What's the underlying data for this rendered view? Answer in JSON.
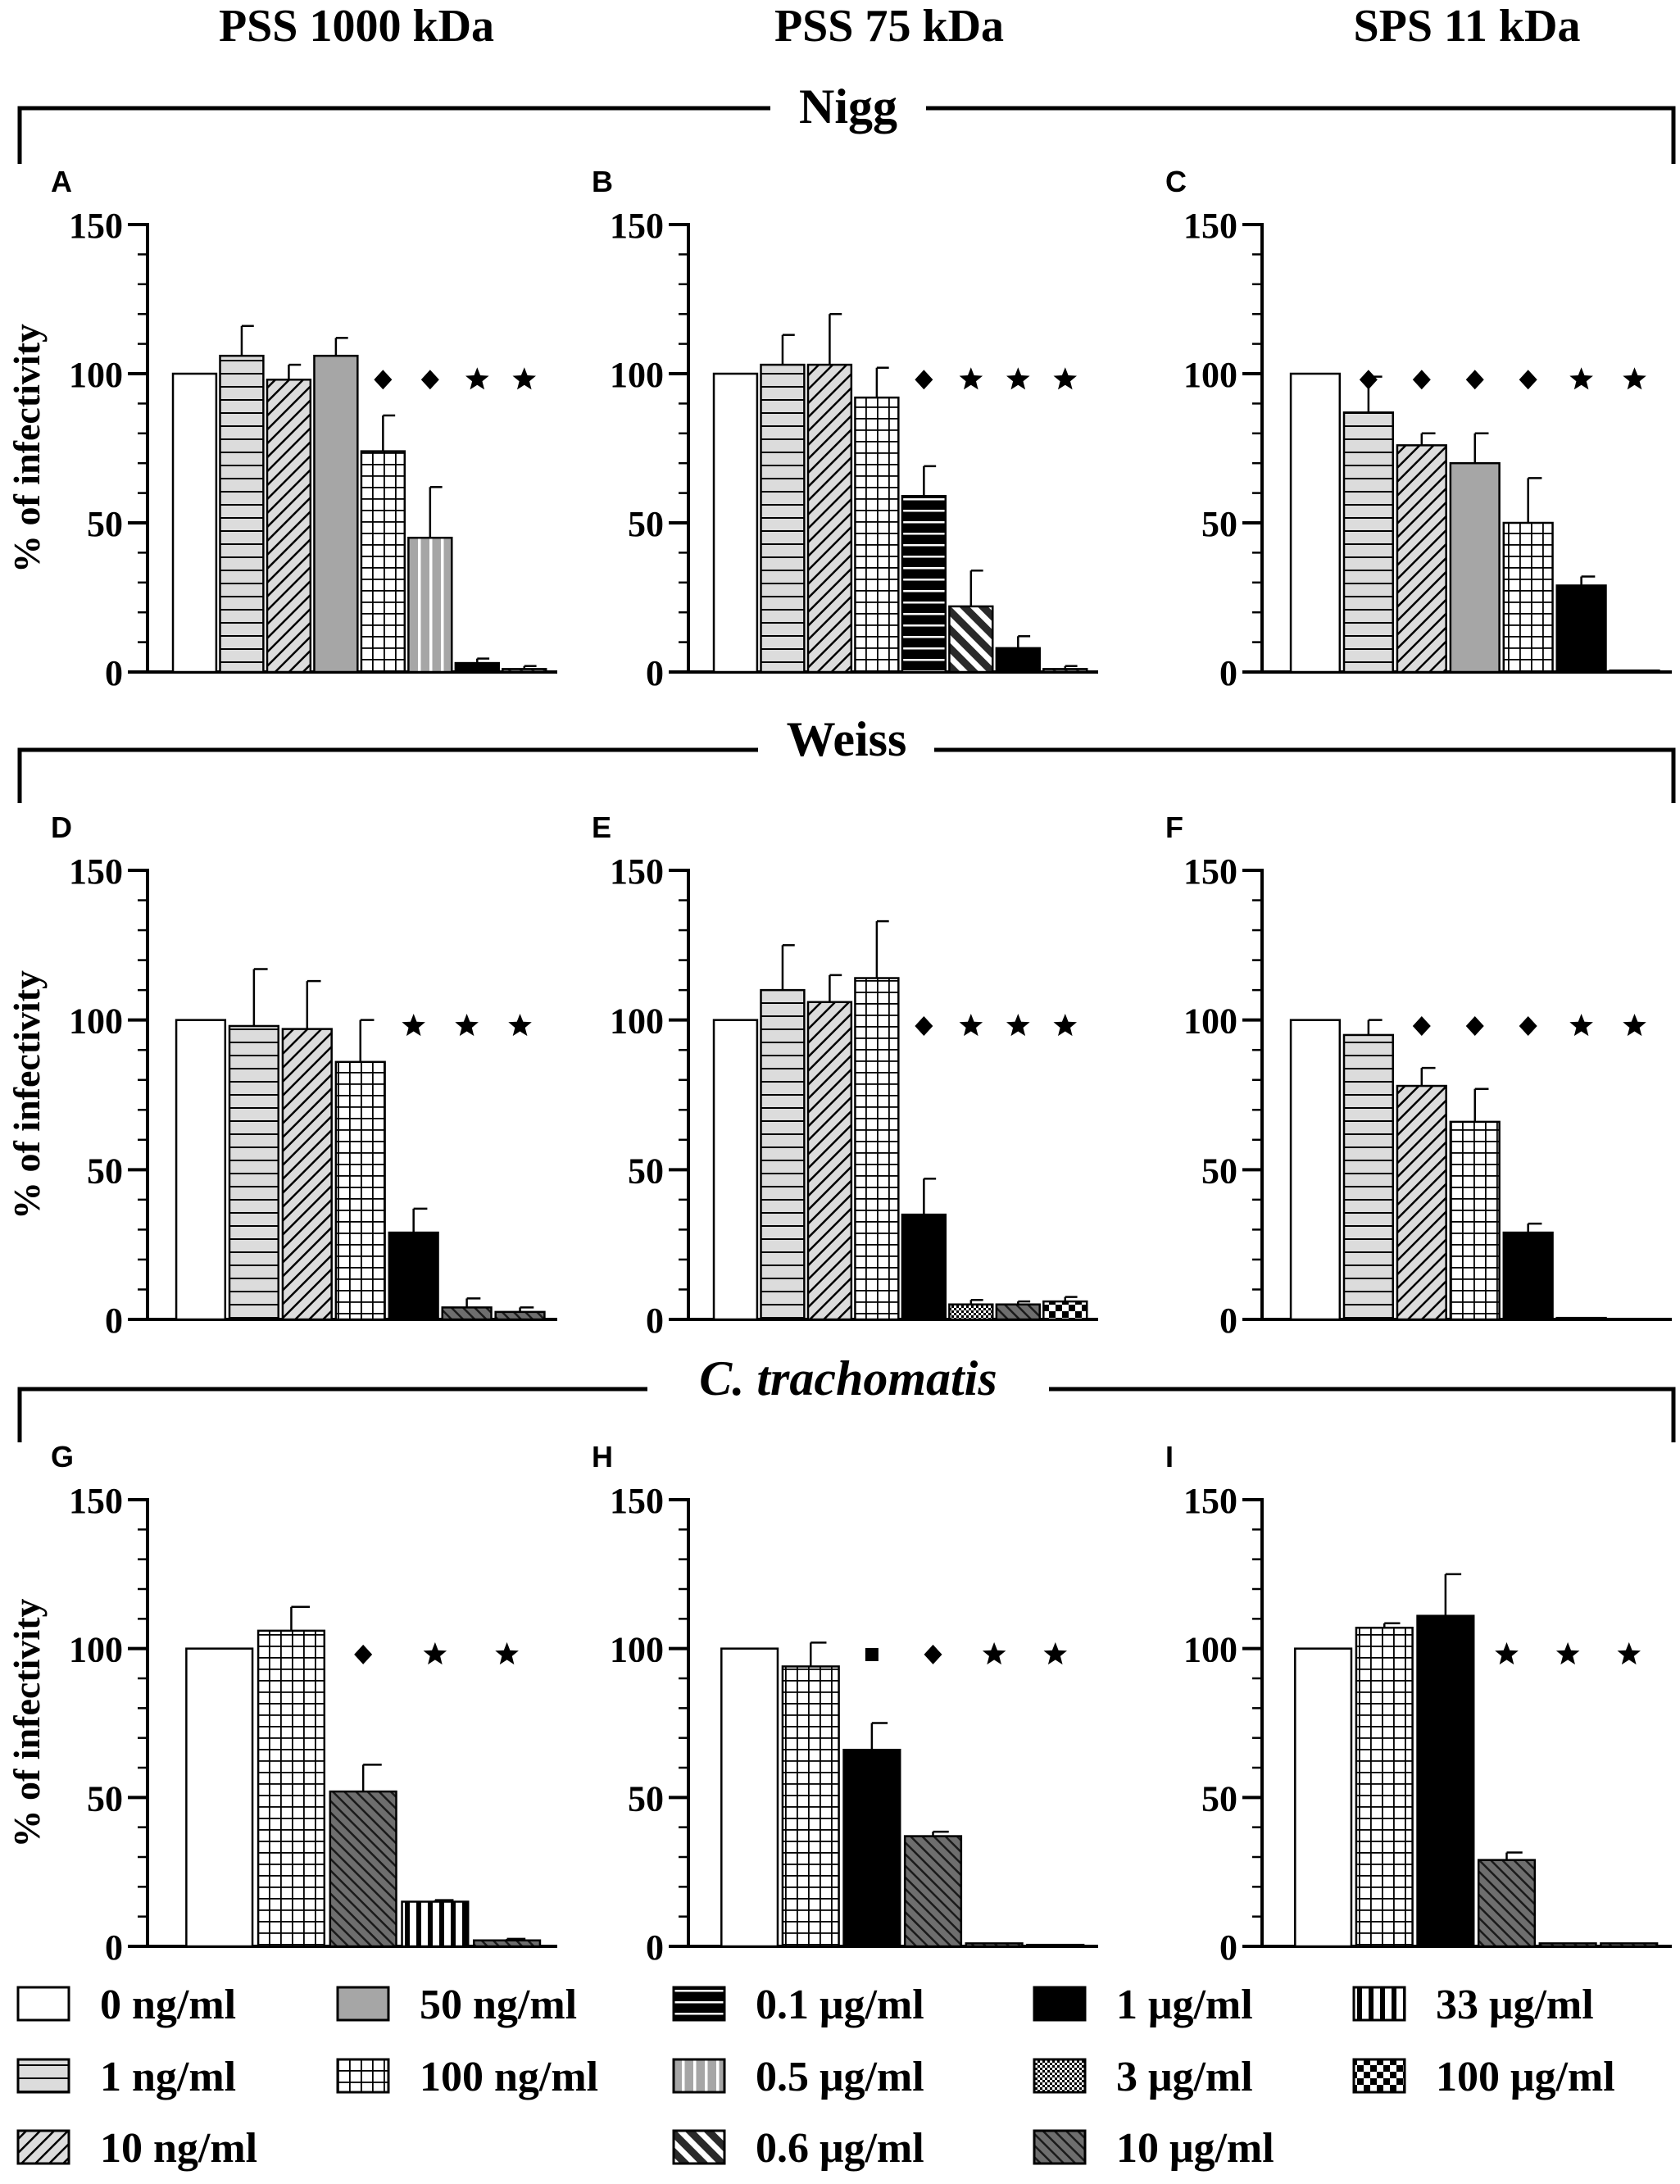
{
  "columns": [
    "PSS 1000 kDa",
    "PSS 75 kDa",
    "SPS 11 kDa"
  ],
  "groups": [
    "Nigg",
    "Weiss",
    "C. trachomatis"
  ],
  "legend": [
    {
      "label": "0 ng/ml",
      "pattern": "p0"
    },
    {
      "label": "1 ng/ml",
      "pattern": "p1"
    },
    {
      "label": "10 ng/ml",
      "pattern": "p10"
    },
    {
      "label": "50 ng/ml",
      "pattern": "p50"
    },
    {
      "label": "100 ng/ml",
      "pattern": "p100"
    },
    {
      "label": "0.1 μg/ml",
      "pattern": "pu01"
    },
    {
      "label": "0.5 μg/ml",
      "pattern": "pu05"
    },
    {
      "label": "0.6 μg/ml",
      "pattern": "pu06"
    },
    {
      "label": "1 μg/ml",
      "pattern": "pu1"
    },
    {
      "label": "3 μg/ml",
      "pattern": "pu3"
    },
    {
      "label": "10 μg/ml",
      "pattern": "pu10"
    },
    {
      "label": "33 μg/ml",
      "pattern": "pu33"
    },
    {
      "label": "100 μg/ml",
      "pattern": "pu100"
    }
  ],
  "colors": {
    "black": "#000000",
    "gray": "#a6a6a6",
    "light": "#dcdcdc",
    "dark": "#6e6e6e",
    "white": "#ffffff"
  },
  "chart_data": [
    {
      "panel": "A",
      "group": "Nigg",
      "column": "PSS 1000 kDa",
      "type": "bar",
      "ylabel": "% of infectivity",
      "ylim": [
        0,
        150
      ],
      "yticks": [
        0,
        50,
        100,
        150
      ],
      "values": [
        100,
        106,
        98,
        106,
        74,
        45,
        3,
        1
      ],
      "errors": [
        0,
        10,
        5,
        6,
        12,
        17,
        1.5,
        1
      ],
      "patterns": [
        "p0",
        "p1",
        "p10",
        "p50",
        "p100",
        "pu05",
        "pu1",
        "pu10"
      ],
      "markers": [
        null,
        null,
        null,
        null,
        "diamond",
        "diamond",
        "star",
        "star"
      ]
    },
    {
      "panel": "B",
      "group": "Nigg",
      "column": "PSS 75 kDa",
      "type": "bar",
      "ylabel": "",
      "ylim": [
        0,
        150
      ],
      "yticks": [
        0,
        50,
        100,
        150
      ],
      "values": [
        100,
        103,
        103,
        92,
        59,
        22,
        8,
        1
      ],
      "errors": [
        0,
        10,
        17,
        10,
        10,
        12,
        4,
        1
      ],
      "patterns": [
        "p0",
        "p1",
        "p10",
        "p100",
        "pu01",
        "pu06",
        "pu1",
        "pu10"
      ],
      "markers": [
        null,
        null,
        null,
        null,
        "diamond",
        "star",
        "star",
        "star"
      ]
    },
    {
      "panel": "C",
      "group": "Nigg",
      "column": "SPS 11 kDa",
      "type": "bar",
      "ylabel": "",
      "ylim": [
        0,
        150
      ],
      "yticks": [
        0,
        50,
        100,
        150
      ],
      "values": [
        100,
        87,
        76,
        70,
        50,
        29,
        0.5
      ],
      "errors": [
        0,
        12,
        4,
        10,
        15,
        3,
        0
      ],
      "patterns": [
        "p0",
        "p1",
        "p10",
        "p50",
        "p100",
        "pu1",
        "pu10"
      ],
      "markers": [
        null,
        "diamond",
        "diamond",
        "diamond",
        "diamond",
        "star",
        "star"
      ]
    },
    {
      "panel": "D",
      "group": "Weiss",
      "column": "PSS 1000 kDa",
      "type": "bar",
      "ylabel": "% of infectivity",
      "ylim": [
        0,
        150
      ],
      "yticks": [
        0,
        50,
        100,
        150
      ],
      "values": [
        100,
        98,
        97,
        86,
        29,
        4,
        2.5
      ],
      "errors": [
        0,
        19,
        16,
        14,
        8,
        3,
        1.5
      ],
      "patterns": [
        "p0",
        "p1",
        "p10",
        "p100",
        "pu1",
        "pu10",
        "pu10"
      ],
      "markers": [
        null,
        null,
        null,
        null,
        "star",
        "star",
        "star"
      ]
    },
    {
      "panel": "E",
      "group": "Weiss",
      "column": "PSS 75 kDa",
      "type": "bar",
      "ylabel": "",
      "ylim": [
        0,
        150
      ],
      "yticks": [
        0,
        50,
        100,
        150
      ],
      "values": [
        100,
        110,
        106,
        114,
        35,
        5,
        5,
        6
      ],
      "errors": [
        0,
        15,
        9,
        19,
        12,
        1.5,
        1,
        1.5
      ],
      "patterns": [
        "p0",
        "p1",
        "p10",
        "p100",
        "pu1",
        "pu3",
        "pu10",
        "pu100"
      ],
      "markers": [
        null,
        null,
        null,
        null,
        "diamond",
        "star",
        "star",
        "star"
      ]
    },
    {
      "panel": "F",
      "group": "Weiss",
      "column": "SPS 11 kDa",
      "type": "bar",
      "ylabel": "",
      "ylim": [
        0,
        150
      ],
      "yticks": [
        0,
        50,
        100,
        150
      ],
      "values": [
        100,
        95,
        78,
        66,
        29,
        0.5,
        0
      ],
      "errors": [
        0,
        5,
        6,
        11,
        3,
        0,
        0
      ],
      "patterns": [
        "p0",
        "p1",
        "p10",
        "p100",
        "pu1",
        "pu10",
        "pu10"
      ],
      "markers": [
        null,
        null,
        "diamond",
        "diamond",
        "diamond",
        "star",
        "star"
      ]
    },
    {
      "panel": "G",
      "group": "C. trachomatis",
      "column": "PSS 1000 kDa",
      "type": "bar",
      "ylabel": "% of infectivity",
      "ylim": [
        0,
        150
      ],
      "yticks": [
        0,
        50,
        100,
        150
      ],
      "values": [
        100,
        106,
        52,
        15,
        2
      ],
      "errors": [
        0,
        8,
        9,
        0.5,
        0.5
      ],
      "patterns": [
        "p0",
        "p100",
        "pu10",
        "pu33",
        "pu10"
      ],
      "markers": [
        null,
        null,
        "diamond",
        "star",
        "star"
      ]
    },
    {
      "panel": "H",
      "group": "C. trachomatis",
      "column": "PSS 75 kDa",
      "type": "bar",
      "ylabel": "",
      "ylim": [
        0,
        150
      ],
      "yticks": [
        0,
        50,
        100,
        150
      ],
      "values": [
        100,
        94,
        66,
        37,
        1,
        0.5
      ],
      "errors": [
        0,
        8,
        9,
        1.5,
        0,
        0
      ],
      "patterns": [
        "p0",
        "p100",
        "pu1",
        "pu10",
        "pu10",
        "pu10"
      ],
      "markers": [
        null,
        null,
        "square",
        "diamond",
        "star",
        "star"
      ]
    },
    {
      "panel": "I",
      "group": "C. trachomatis",
      "column": "SPS 11 kDa",
      "type": "bar",
      "ylabel": "",
      "ylim": [
        0,
        150
      ],
      "yticks": [
        0,
        50,
        100,
        150
      ],
      "values": [
        100,
        107,
        111,
        29,
        1,
        1
      ],
      "errors": [
        0,
        1.5,
        14,
        2.5,
        0,
        0
      ],
      "patterns": [
        "p0",
        "p100",
        "pu1",
        "pu10",
        "pu10",
        "pu10"
      ],
      "markers": [
        null,
        null,
        null,
        "star",
        "star",
        "star"
      ]
    }
  ]
}
